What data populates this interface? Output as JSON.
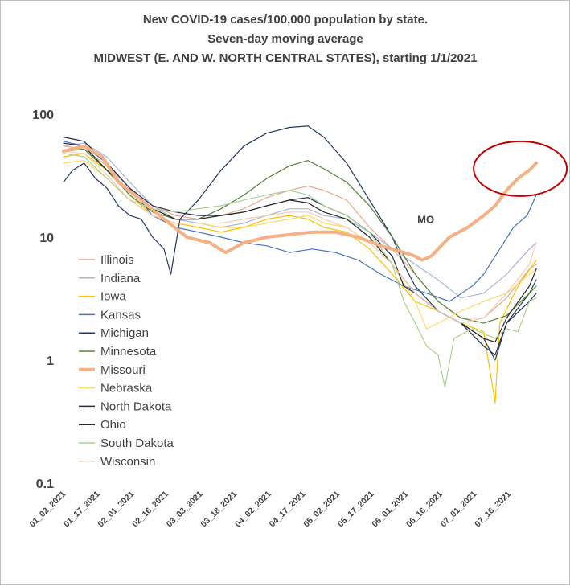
{
  "chart_data": {
    "type": "line",
    "title_lines": [
      "New COVID-19 cases/100,000 population by state.",
      "Seven-day moving average",
      "MIDWEST (E. AND W. NORTH CENTRAL STATES), starting 1/1/2021"
    ],
    "xlabel": "",
    "ylabel": "",
    "yscale": "log",
    "ylim": [
      0.1,
      100
    ],
    "y_ticks": [
      "100",
      "10",
      "1",
      "0.1"
    ],
    "y_tick_values": [
      100,
      10,
      1,
      0.1
    ],
    "x_ticks": [
      "01_02_2021",
      "01_17_2021",
      "02_01_2021",
      "02_16_2021",
      "03_03_2021",
      "03_18_2021",
      "04_02_2021",
      "04_17_2021",
      "05_02_2021",
      "05_17_2021",
      "06_01_2021",
      "06_16_2021",
      "07_01_2021",
      "07_16_2021"
    ],
    "x_tick_days": [
      1,
      16,
      31,
      46,
      61,
      76,
      91,
      106,
      121,
      136,
      151,
      166,
      181,
      196
    ],
    "x_range_days": [
      1,
      208
    ],
    "gridlines": false,
    "legend_placement": "left, inside plot",
    "annotation": {
      "text": "MO",
      "day": 163,
      "value": 14
    },
    "highlight_ellipse": {
      "day_center": 201,
      "value_center": 36,
      "color": "#c00000"
    },
    "series": [
      {
        "name": "Illinois",
        "color": "#e6a98f",
        "width": 1.2,
        "points": [
          [
            1,
            55
          ],
          [
            10,
            52
          ],
          [
            20,
            38
          ],
          [
            30,
            25
          ],
          [
            40,
            18
          ],
          [
            50,
            15
          ],
          [
            60,
            14
          ],
          [
            70,
            15
          ],
          [
            80,
            17
          ],
          [
            90,
            21
          ],
          [
            100,
            24
          ],
          [
            108,
            26
          ],
          [
            115,
            24
          ],
          [
            125,
            20
          ],
          [
            135,
            12
          ],
          [
            145,
            8
          ],
          [
            155,
            5
          ],
          [
            165,
            3
          ],
          [
            175,
            2.2
          ],
          [
            185,
            2.2
          ],
          [
            195,
            3.2
          ],
          [
            205,
            5.5
          ],
          [
            208,
            6
          ]
        ]
      },
      {
        "name": "Indiana",
        "color": "#a9b6d8",
        "width": 1.2,
        "points": [
          [
            1,
            55
          ],
          [
            10,
            58
          ],
          [
            20,
            45
          ],
          [
            30,
            28
          ],
          [
            40,
            18
          ],
          [
            50,
            14
          ],
          [
            60,
            13
          ],
          [
            70,
            12
          ],
          [
            80,
            13
          ],
          [
            90,
            15
          ],
          [
            100,
            17
          ],
          [
            108,
            17
          ],
          [
            115,
            15
          ],
          [
            125,
            14
          ],
          [
            135,
            11
          ],
          [
            145,
            8
          ],
          [
            155,
            6
          ],
          [
            165,
            4.5
          ],
          [
            175,
            3.2
          ],
          [
            185,
            3.5
          ],
          [
            195,
            5
          ],
          [
            205,
            8
          ],
          [
            208,
            9
          ]
        ]
      },
      {
        "name": "Iowa",
        "color": "#ffc000",
        "width": 1.2,
        "points": [
          [
            1,
            45
          ],
          [
            10,
            48
          ],
          [
            20,
            35
          ],
          [
            30,
            22
          ],
          [
            40,
            15
          ],
          [
            50,
            13
          ],
          [
            60,
            12
          ],
          [
            70,
            11
          ],
          [
            80,
            12
          ],
          [
            90,
            14
          ],
          [
            100,
            15
          ],
          [
            108,
            14
          ],
          [
            115,
            12
          ],
          [
            125,
            11
          ],
          [
            135,
            8
          ],
          [
            145,
            5
          ],
          [
            155,
            3
          ],
          [
            165,
            2.5
          ],
          [
            175,
            2
          ],
          [
            185,
            1.7
          ],
          [
            190,
            0.45
          ],
          [
            192,
            2
          ],
          [
            200,
            4
          ],
          [
            208,
            6.5
          ]
        ]
      },
      {
        "name": "Kansas",
        "color": "#4472c4",
        "width": 1.2,
        "points": [
          [
            1,
            60
          ],
          [
            10,
            55
          ],
          [
            20,
            40
          ],
          [
            30,
            25
          ],
          [
            40,
            15
          ],
          [
            50,
            12
          ],
          [
            60,
            11
          ],
          [
            70,
            10
          ],
          [
            80,
            9
          ],
          [
            90,
            8.5
          ],
          [
            100,
            7.5
          ],
          [
            110,
            8
          ],
          [
            120,
            7.5
          ],
          [
            130,
            6.5
          ],
          [
            140,
            5
          ],
          [
            150,
            4
          ],
          [
            160,
            3.5
          ],
          [
            170,
            3
          ],
          [
            180,
            4
          ],
          [
            185,
            5
          ],
          [
            192,
            8
          ],
          [
            198,
            12
          ],
          [
            204,
            15
          ],
          [
            208,
            22
          ]
        ]
      },
      {
        "name": "Michigan",
        "color": "#203864",
        "width": 1.2,
        "points": [
          [
            1,
            28
          ],
          [
            5,
            35
          ],
          [
            10,
            40
          ],
          [
            15,
            30
          ],
          [
            20,
            25
          ],
          [
            25,
            18
          ],
          [
            30,
            15
          ],
          [
            35,
            14
          ],
          [
            40,
            10
          ],
          [
            45,
            8
          ],
          [
            48,
            5
          ],
          [
            52,
            14
          ],
          [
            60,
            20
          ],
          [
            70,
            35
          ],
          [
            80,
            55
          ],
          [
            90,
            70
          ],
          [
            100,
            78
          ],
          [
            108,
            80
          ],
          [
            115,
            65
          ],
          [
            125,
            40
          ],
          [
            135,
            20
          ],
          [
            145,
            10
          ],
          [
            150,
            6
          ],
          [
            155,
            4
          ],
          [
            165,
            2.5
          ],
          [
            175,
            2
          ],
          [
            185,
            1.5
          ],
          [
            190,
            1
          ],
          [
            195,
            2
          ],
          [
            205,
            3.5
          ],
          [
            208,
            4.5
          ]
        ]
      },
      {
        "name": "Minnesota",
        "color": "#548235",
        "width": 1.2,
        "points": [
          [
            1,
            50
          ],
          [
            10,
            52
          ],
          [
            20,
            35
          ],
          [
            30,
            22
          ],
          [
            40,
            16
          ],
          [
            50,
            14
          ],
          [
            60,
            14
          ],
          [
            70,
            17
          ],
          [
            80,
            22
          ],
          [
            90,
            30
          ],
          [
            100,
            38
          ],
          [
            108,
            42
          ],
          [
            115,
            36
          ],
          [
            125,
            28
          ],
          [
            135,
            18
          ],
          [
            145,
            10
          ],
          [
            155,
            5
          ],
          [
            165,
            3
          ],
          [
            175,
            2.2
          ],
          [
            185,
            2
          ],
          [
            195,
            2.3
          ],
          [
            205,
            3.5
          ],
          [
            208,
            4
          ]
        ]
      },
      {
        "name": "Missouri",
        "color": "#f4b183",
        "width": 4,
        "points": [
          [
            1,
            50
          ],
          [
            10,
            55
          ],
          [
            18,
            45
          ],
          [
            25,
            28
          ],
          [
            35,
            20
          ],
          [
            45,
            14
          ],
          [
            55,
            10
          ],
          [
            65,
            9
          ],
          [
            72,
            7.5
          ],
          [
            80,
            9
          ],
          [
            90,
            10
          ],
          [
            100,
            10.5
          ],
          [
            110,
            11
          ],
          [
            120,
            11
          ],
          [
            130,
            10
          ],
          [
            140,
            8.5
          ],
          [
            150,
            7.5
          ],
          [
            155,
            7
          ],
          [
            158,
            6.5
          ],
          [
            162,
            7
          ],
          [
            170,
            10
          ],
          [
            178,
            12
          ],
          [
            185,
            15
          ],
          [
            190,
            18
          ],
          [
            195,
            24
          ],
          [
            200,
            30
          ],
          [
            205,
            35
          ],
          [
            208,
            40
          ]
        ]
      },
      {
        "name": "Nebraska",
        "color": "#ffd966",
        "width": 1.2,
        "points": [
          [
            1,
            40
          ],
          [
            10,
            42
          ],
          [
            20,
            30
          ],
          [
            30,
            20
          ],
          [
            40,
            15
          ],
          [
            50,
            13
          ],
          [
            60,
            13
          ],
          [
            70,
            12
          ],
          [
            80,
            12
          ],
          [
            90,
            13
          ],
          [
            100,
            14
          ],
          [
            108,
            15
          ],
          [
            115,
            13
          ],
          [
            125,
            12
          ],
          [
            135,
            9
          ],
          [
            145,
            6
          ],
          [
            155,
            3
          ],
          [
            160,
            1.8
          ],
          [
            165,
            2
          ],
          [
            175,
            2.5
          ],
          [
            185,
            3
          ],
          [
            195,
            3.5
          ],
          [
            205,
            5
          ],
          [
            208,
            5.5
          ]
        ]
      },
      {
        "name": "North Dakota",
        "color": "#1f2d4f",
        "width": 1.2,
        "points": [
          [
            1,
            65
          ],
          [
            10,
            60
          ],
          [
            20,
            40
          ],
          [
            30,
            25
          ],
          [
            40,
            18
          ],
          [
            50,
            16
          ],
          [
            60,
            15
          ],
          [
            70,
            15
          ],
          [
            80,
            16
          ],
          [
            90,
            18
          ],
          [
            100,
            20
          ],
          [
            108,
            21
          ],
          [
            115,
            18
          ],
          [
            125,
            15
          ],
          [
            135,
            11
          ],
          [
            145,
            7
          ],
          [
            150,
            4
          ],
          [
            155,
            3.5
          ],
          [
            165,
            2.5
          ],
          [
            175,
            2
          ],
          [
            185,
            1.3
          ],
          [
            190,
            1.1
          ],
          [
            195,
            2
          ],
          [
            205,
            3
          ],
          [
            208,
            3.5
          ]
        ]
      },
      {
        "name": "Ohio",
        "color": "#262626",
        "width": 1.2,
        "points": [
          [
            1,
            58
          ],
          [
            10,
            55
          ],
          [
            20,
            35
          ],
          [
            30,
            24
          ],
          [
            40,
            17
          ],
          [
            50,
            14
          ],
          [
            60,
            14
          ],
          [
            70,
            15
          ],
          [
            80,
            16
          ],
          [
            90,
            18
          ],
          [
            100,
            20
          ],
          [
            108,
            19
          ],
          [
            115,
            16
          ],
          [
            125,
            14
          ],
          [
            135,
            10
          ],
          [
            145,
            6
          ],
          [
            155,
            3.5
          ],
          [
            165,
            2.5
          ],
          [
            175,
            2
          ],
          [
            185,
            1.5
          ],
          [
            190,
            1.4
          ],
          [
            195,
            2.2
          ],
          [
            205,
            4
          ],
          [
            208,
            5.5
          ]
        ]
      },
      {
        "name": "South Dakota",
        "color": "#a9d18e",
        "width": 1.2,
        "points": [
          [
            1,
            48
          ],
          [
            10,
            45
          ],
          [
            20,
            30
          ],
          [
            30,
            20
          ],
          [
            40,
            17
          ],
          [
            50,
            16
          ],
          [
            60,
            17
          ],
          [
            70,
            18
          ],
          [
            80,
            20
          ],
          [
            90,
            22
          ],
          [
            100,
            24
          ],
          [
            108,
            22
          ],
          [
            115,
            18
          ],
          [
            125,
            15
          ],
          [
            135,
            11
          ],
          [
            145,
            6
          ],
          [
            150,
            3
          ],
          [
            155,
            2
          ],
          [
            160,
            1.3
          ],
          [
            165,
            1.1
          ],
          [
            168,
            0.6
          ],
          [
            172,
            1.5
          ],
          [
            180,
            1.8
          ],
          [
            190,
            1.5
          ],
          [
            195,
            1.8
          ],
          [
            200,
            1.7
          ],
          [
            205,
            3
          ],
          [
            208,
            3.2
          ]
        ]
      },
      {
        "name": "Wisconsin",
        "color": "#f8cbad",
        "width": 1.2,
        "points": [
          [
            1,
            50
          ],
          [
            10,
            48
          ],
          [
            20,
            32
          ],
          [
            30,
            20
          ],
          [
            40,
            15
          ],
          [
            50,
            13
          ],
          [
            60,
            13
          ],
          [
            70,
            13
          ],
          [
            80,
            14
          ],
          [
            90,
            15
          ],
          [
            100,
            16
          ],
          [
            108,
            16
          ],
          [
            115,
            14
          ],
          [
            125,
            12
          ],
          [
            135,
            9
          ],
          [
            145,
            6
          ],
          [
            155,
            3.5
          ],
          [
            165,
            2.5
          ],
          [
            175,
            2
          ],
          [
            185,
            2.2
          ],
          [
            195,
            3.5
          ],
          [
            205,
            6
          ],
          [
            208,
            9
          ]
        ]
      }
    ]
  }
}
